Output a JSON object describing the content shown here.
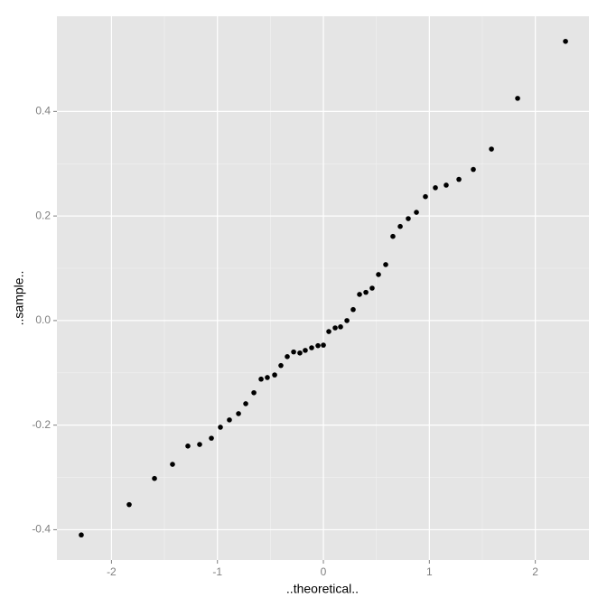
{
  "chart_data": {
    "type": "scatter",
    "x_label": "..theoretical..",
    "y_label": "..sample..",
    "xlim": [
      -2.515,
      2.506
    ],
    "ylim": [
      -0.458,
      0.582
    ],
    "xticks": [
      -2,
      -1,
      0,
      1,
      2
    ],
    "yticks": [
      -0.4,
      -0.2,
      {
        "value": 0,
        "label": "0.0"
      },
      0.2,
      0.4
    ],
    "grid": true,
    "color": "#000000",
    "series": [
      {
        "x": [
          -2.285,
          -1.833,
          -1.594,
          -1.424,
          -1.279,
          -1.168,
          -1.057,
          -0.972,
          -0.887,
          -0.801,
          -0.733,
          -0.656,
          -0.588,
          -0.529,
          -0.46,
          -0.401,
          -0.341,
          -0.281,
          -0.222,
          -0.171,
          -0.111,
          -0.051,
          0,
          0.051,
          0.111,
          0.162,
          0.222,
          0.281,
          0.341,
          0.401,
          0.46,
          0.52,
          0.588,
          0.656,
          0.725,
          0.801,
          0.878,
          0.963,
          1.057,
          1.159,
          1.279,
          1.415,
          1.586,
          1.833,
          2.285
        ],
        "values": [
          -0.41,
          -0.352,
          -0.302,
          -0.275,
          -0.24,
          -0.237,
          -0.225,
          -0.204,
          -0.19,
          -0.178,
          -0.159,
          -0.138,
          -0.112,
          -0.109,
          -0.104,
          -0.086,
          -0.069,
          -0.06,
          -0.062,
          -0.057,
          -0.052,
          -0.048,
          -0.047,
          -0.021,
          -0.014,
          -0.012,
          0,
          0.021,
          0.05,
          0.054,
          0.062,
          0.088,
          0.107,
          0.161,
          0.18,
          0.195,
          0.207,
          0.237,
          0.254,
          0.259,
          0.27,
          0.289,
          0.328,
          0.425,
          0.534
        ]
      }
    ]
  }
}
